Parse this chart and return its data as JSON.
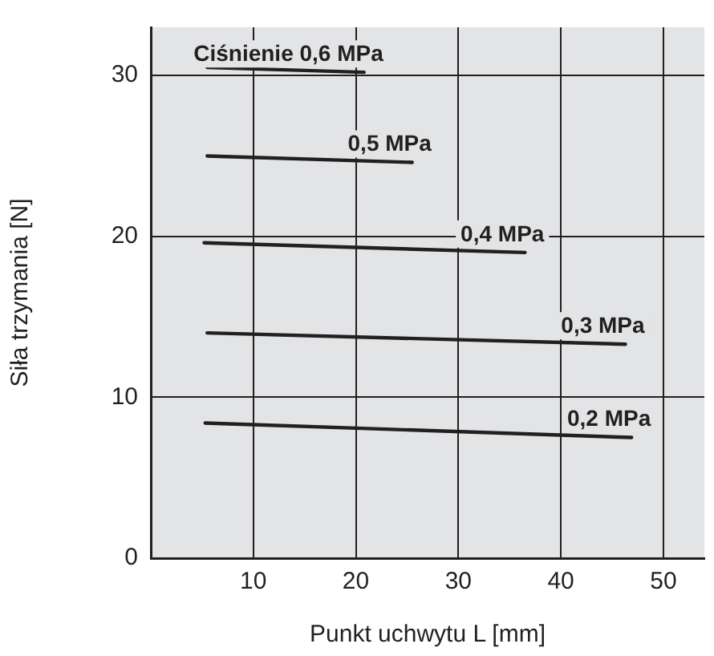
{
  "chart_data": {
    "type": "line",
    "xlabel": "Punkt uchwytu L [mm]",
    "ylabel": "Siła trzymania [N]",
    "xlim": [
      0,
      54
    ],
    "xticks": [
      {
        "value": 0,
        "label": null
      },
      10,
      20,
      30,
      40,
      50
    ],
    "ylim": [
      0,
      33
    ],
    "yticks": [
      0,
      10,
      20,
      30
    ],
    "grid": true,
    "legend": false,
    "marker": "none",
    "line_style": "solid",
    "series": [
      {
        "name": "Ciśnienie 0,6 MPa",
        "color": "#231f20",
        "x": [
          5.5,
          20.8
        ],
        "values": [
          30.5,
          30.2
        ]
      },
      {
        "name": "0,5 MPa",
        "color": "#231f20",
        "x": [
          5.5,
          25.5
        ],
        "values": [
          25.0,
          24.6
        ]
      },
      {
        "name": "0,4 MPa",
        "color": "#231f20",
        "x": [
          5.2,
          36.5
        ],
        "values": [
          19.6,
          19.0
        ]
      },
      {
        "name": "0,3 MPa",
        "color": "#231f20",
        "x": [
          5.5,
          46.3
        ],
        "values": [
          14.0,
          13.3
        ]
      },
      {
        "name": "0,2 MPa",
        "color": "#231f20",
        "x": [
          5.3,
          46.9
        ],
        "values": [
          8.4,
          7.5
        ]
      }
    ]
  }
}
